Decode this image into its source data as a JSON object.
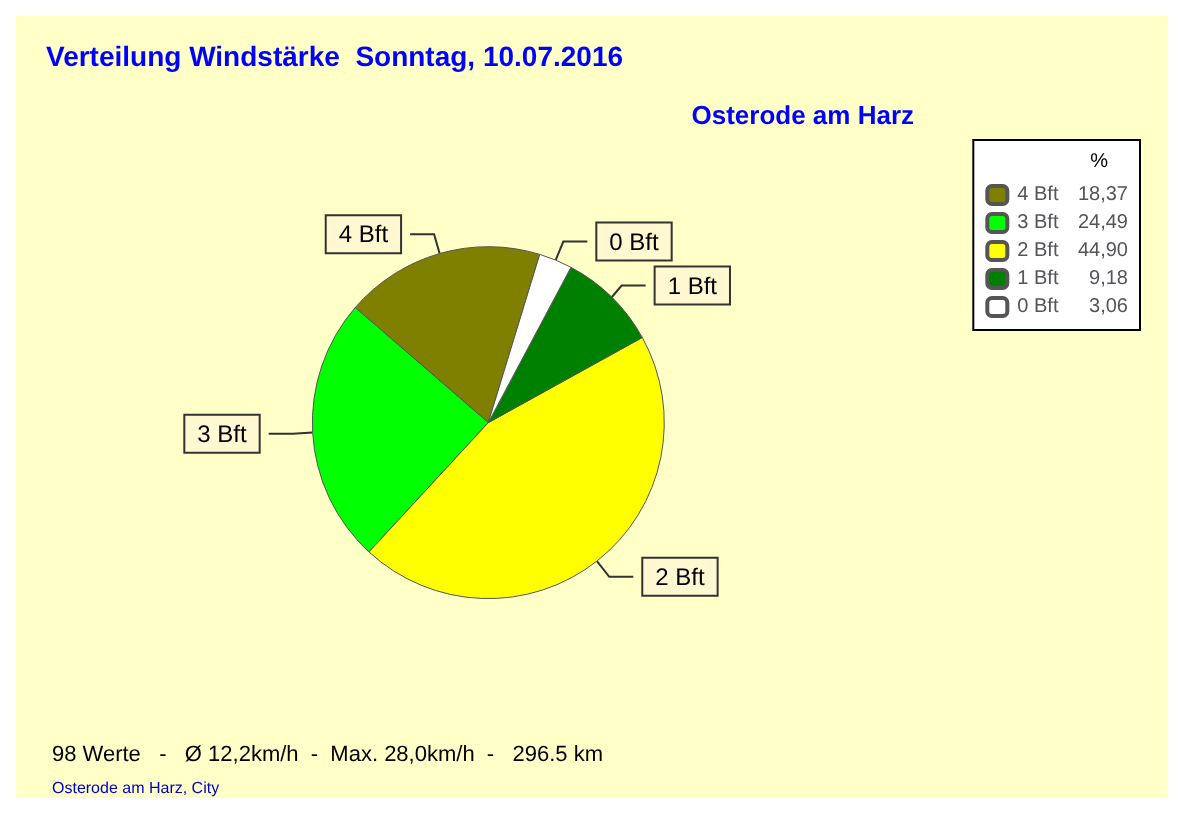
{
  "chart_data": {
    "type": "pie",
    "title": "Verteilung Windstärke  Sonntag, 10.07.2016",
    "subtitle": "Osterode am Harz",
    "categories": [
      "4 Bft",
      "3 Bft",
      "2 Bft",
      "1 Bft",
      "0 Bft"
    ],
    "values": [
      18.37,
      24.49,
      44.9,
      9.18,
      3.06
    ],
    "value_labels": [
      "18,37",
      "24,49",
      "44,90",
      "9,18",
      "3,06"
    ],
    "colors": [
      "#808000",
      "#00ff00",
      "#ffff00",
      "#008000",
      "#ffffff"
    ],
    "legend": "top right",
    "legend_title": "%",
    "annotations": [
      "98 Werte   -   Ø 12,2km/h  -  Max. 28,0km/h  -   296.5 km",
      "Osterode am Harz, City"
    ]
  }
}
